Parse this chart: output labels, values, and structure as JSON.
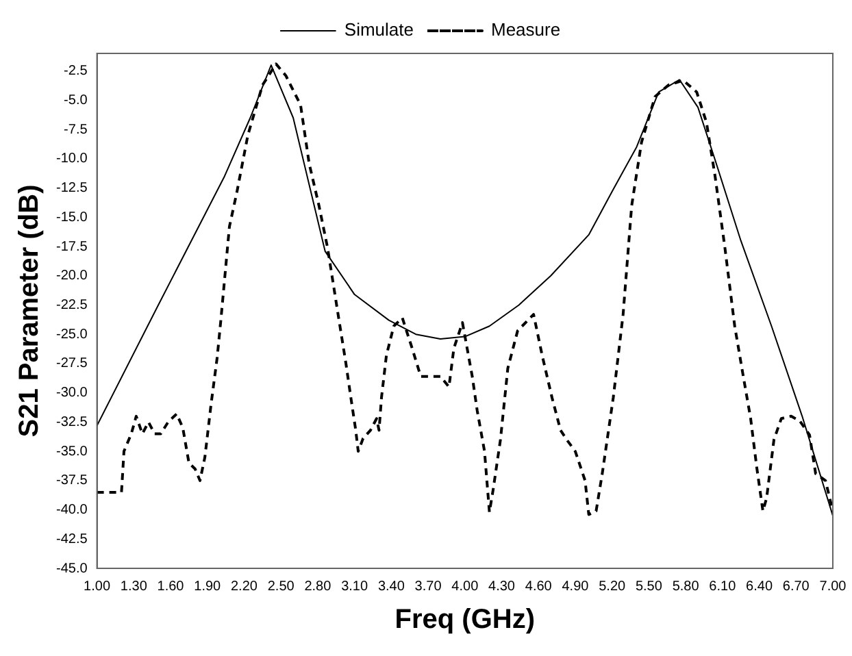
{
  "chart_data": {
    "type": "line",
    "xlabel": "Freq (GHz)",
    "ylabel": "S21 Parameter (dB)",
    "xlim": [
      1,
      7
    ],
    "ylim": [
      -45,
      -1
    ],
    "xticks": [
      {
        "value": 1,
        "label": "1.00"
      },
      {
        "value": 1.3,
        "label": "1.30"
      },
      {
        "value": 1.6,
        "label": "1.60"
      },
      {
        "value": 1.9,
        "label": "1.90"
      },
      {
        "value": 2.2,
        "label": "2.20"
      },
      {
        "value": 2.5,
        "label": "2.50"
      },
      {
        "value": 2.8,
        "label": "2.80"
      },
      {
        "value": 3.1,
        "label": "3.10"
      },
      {
        "value": 3.4,
        "label": "3.40"
      },
      {
        "value": 3.7,
        "label": "3.70"
      },
      {
        "value": 4,
        "label": "4.00"
      },
      {
        "value": 4.3,
        "label": "4.30"
      },
      {
        "value": 4.6,
        "label": "4.60"
      },
      {
        "value": 4.9,
        "label": "4.90"
      },
      {
        "value": 5.2,
        "label": "5.20"
      },
      {
        "value": 5.5,
        "label": "5.50"
      },
      {
        "value": 5.8,
        "label": "5.80"
      },
      {
        "value": 6.1,
        "label": "6.10"
      },
      {
        "value": 6.4,
        "label": "6.40"
      },
      {
        "value": 6.7,
        "label": "6.70"
      },
      {
        "value": 7,
        "label": "7.00"
      }
    ],
    "yticks": [
      {
        "value": -45,
        "label": "-45.0"
      },
      {
        "value": -42.5,
        "label": "-42.5"
      },
      {
        "value": -40,
        "label": "-40.0"
      },
      {
        "value": -37.5,
        "label": "-37.5"
      },
      {
        "value": -35,
        "label": "-35.0"
      },
      {
        "value": -32.5,
        "label": "-32.5"
      },
      {
        "value": -30,
        "label": "-30.0"
      },
      {
        "value": -27.5,
        "label": "-27.5"
      },
      {
        "value": -25,
        "label": "-25.0"
      },
      {
        "value": -22.5,
        "label": "-22.5"
      },
      {
        "value": -20,
        "label": "-20.0"
      },
      {
        "value": -17.5,
        "label": "-17.5"
      },
      {
        "value": -15,
        "label": "-15.0"
      },
      {
        "value": -12.5,
        "label": "-12.5"
      },
      {
        "value": -10,
        "label": "-10.0"
      },
      {
        "value": -7.5,
        "label": "-7.5"
      },
      {
        "value": -5,
        "label": "-5.0"
      },
      {
        "value": -2.5,
        "label": "-2.5"
      }
    ],
    "grid": false,
    "legend": "top",
    "marker": "none",
    "series": [
      {
        "name": "Simulate",
        "color": "#000000",
        "line_style": "solid",
        "x": [
          1,
          1.5,
          2.04,
          2.25,
          2.42,
          2.6,
          2.86,
          3.1,
          3.38,
          3.6,
          3.8,
          4.0,
          4.2,
          4.44,
          4.7,
          5.01,
          5.2,
          5.4,
          5.58,
          5.75,
          5.9,
          6.04,
          6.25,
          6.5,
          6.75,
          7
        ],
        "values": [
          -32.8,
          -22.5,
          -11.5,
          -6.5,
          -2,
          -6.5,
          -17.9,
          -21.6,
          -23.8,
          -25,
          -25.4,
          -25.2,
          -24.3,
          -22.5,
          -20,
          -16.5,
          -12.8,
          -9,
          -4.3,
          -3.25,
          -5.6,
          -10.1,
          -17,
          -24.3,
          -32,
          -40.5
        ]
      },
      {
        "name": "Measure",
        "color": "#000000",
        "line_style": "dashed",
        "x": [
          1,
          1.2,
          1.22,
          1.28,
          1.32,
          1.37,
          1.42,
          1.47,
          1.52,
          1.58,
          1.65,
          1.7,
          1.75,
          1.8,
          1.84,
          1.88,
          1.93,
          1.98,
          2.01,
          2.08,
          2.14,
          2.23,
          2.35,
          2.46,
          2.54,
          2.66,
          2.73,
          2.81,
          2.88,
          2.96,
          3.03,
          3.07,
          3.11,
          3.13,
          3.17,
          3.23,
          3.28,
          3.3,
          3.32,
          3.36,
          3.42,
          3.49,
          3.57,
          3.64,
          3.72,
          3.8,
          3.87,
          3.91,
          3.98,
          4.06,
          4.1,
          4.16,
          4.2,
          4.23,
          4.29,
          4.35,
          4.43,
          4.56,
          4.63,
          4.71,
          4.78,
          4.83,
          4.9,
          4.98,
          5.01,
          5.07,
          5.12,
          5.21,
          5.29,
          5.36,
          5.44,
          5.55,
          5.66,
          5.78,
          5.89,
          5.97,
          6.04,
          6.12,
          6.2,
          6.27,
          6.33,
          6.38,
          6.43,
          6.46,
          6.52,
          6.58,
          6.66,
          6.73,
          6.81,
          6.86,
          6.94,
          7
        ],
        "values": [
          -38.5,
          -38.5,
          -35,
          -33.5,
          -32,
          -33.5,
          -32.5,
          -33.5,
          -33.5,
          -32.5,
          -31.8,
          -33,
          -36,
          -36.5,
          -37.5,
          -35.5,
          -31,
          -27,
          -23.8,
          -15.8,
          -12.9,
          -8,
          -3.7,
          -1.9,
          -2.9,
          -5.4,
          -10.4,
          -14,
          -17.6,
          -22.9,
          -27.5,
          -30.4,
          -33.2,
          -35,
          -33.9,
          -33.2,
          -32.2,
          -33.2,
          -30.4,
          -26.8,
          -24.3,
          -23.6,
          -26.2,
          -28.6,
          -28.6,
          -28.6,
          -29.5,
          -26.2,
          -24,
          -28.6,
          -31.5,
          -35,
          -40.2,
          -38.3,
          -34,
          -27.9,
          -24.7,
          -23.3,
          -26.8,
          -30.4,
          -33.2,
          -34,
          -35,
          -37.5,
          -40.4,
          -40.1,
          -36.9,
          -30.4,
          -23.3,
          -14,
          -8.6,
          -4.7,
          -3.7,
          -3.3,
          -4.3,
          -6.9,
          -11.5,
          -17.6,
          -24.3,
          -28.6,
          -32.2,
          -36.4,
          -40.1,
          -39,
          -34,
          -32.2,
          -32,
          -32.4,
          -33.6,
          -36.9,
          -37.5,
          -40.1
        ]
      }
    ]
  }
}
